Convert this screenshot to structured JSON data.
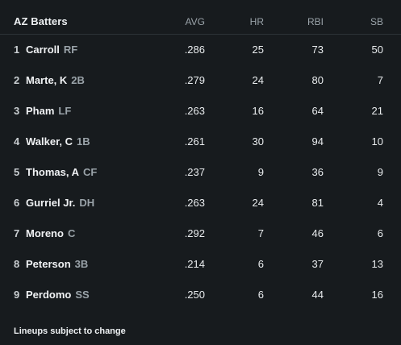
{
  "header": {
    "title": "AZ Batters",
    "columns": [
      "AVG",
      "HR",
      "RBI",
      "SB"
    ]
  },
  "batters": [
    {
      "order": "1",
      "name": "Carroll",
      "pos": "RF",
      "avg": ".286",
      "hr": "25",
      "rbi": "73",
      "sb": "50"
    },
    {
      "order": "2",
      "name": "Marte, K",
      "pos": "2B",
      "avg": ".279",
      "hr": "24",
      "rbi": "80",
      "sb": "7"
    },
    {
      "order": "3",
      "name": "Pham",
      "pos": "LF",
      "avg": ".263",
      "hr": "16",
      "rbi": "64",
      "sb": "21"
    },
    {
      "order": "4",
      "name": "Walker, C",
      "pos": "1B",
      "avg": ".261",
      "hr": "30",
      "rbi": "94",
      "sb": "10"
    },
    {
      "order": "5",
      "name": "Thomas, A",
      "pos": "CF",
      "avg": ".237",
      "hr": "9",
      "rbi": "36",
      "sb": "9"
    },
    {
      "order": "6",
      "name": "Gurriel Jr.",
      "pos": "DH",
      "avg": ".263",
      "hr": "24",
      "rbi": "81",
      "sb": "4"
    },
    {
      "order": "7",
      "name": "Moreno",
      "pos": "C",
      "avg": ".292",
      "hr": "7",
      "rbi": "46",
      "sb": "6"
    },
    {
      "order": "8",
      "name": "Peterson",
      "pos": "3B",
      "avg": ".214",
      "hr": "6",
      "rbi": "37",
      "sb": "13"
    },
    {
      "order": "9",
      "name": "Perdomo",
      "pos": "SS",
      "avg": ".250",
      "hr": "6",
      "rbi": "44",
      "sb": "16"
    }
  ],
  "footer": {
    "note": "Lineups subject to change"
  }
}
